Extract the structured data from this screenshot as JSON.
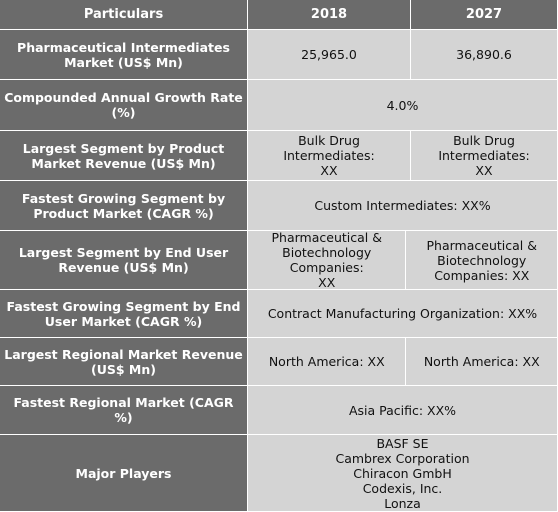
{
  "header": {
    "col1": "Particulars",
    "col2": "2018",
    "col3": "2027"
  },
  "rows": [
    {
      "label": "Pharmaceutical Intermediates\nMarket (US$ Mn)",
      "v2018": "25,965.0",
      "v2027": "36,890.6"
    },
    {
      "label": "Compounded Annual Growth Rate\n(%)",
      "value": "4.0%"
    },
    {
      "label": "Largest Segment by Product\nMarket Revenue (US$ Mn)",
      "v2018": "Bulk Drug\nIntermediates:\nXX",
      "v2027": "Bulk Drug\nIntermediates:\nXX"
    },
    {
      "label": "Fastest Growing Segment by\nProduct Market (CAGR %)",
      "value": "Custom Intermediates:  XX%"
    },
    {
      "label": "Largest Segment by End User\nRevenue (US$ Mn)",
      "v2018": "Pharmaceutical &\nBiotechnology\nCompanies:\nXX",
      "v2027": "Pharmaceutical &\nBiotechnology\nCompanies:  XX"
    },
    {
      "label": "Fastest Growing Segment by End\nUser Market (CAGR %)",
      "value": "Contract Manufacturing Organization:  XX%"
    },
    {
      "label": "Largest Regional Market Revenue\n(US$ Mn)",
      "v2018": "North America: XX",
      "v2027": "North America: XX"
    },
    {
      "label": "Fastest Regional Market (CAGR %)",
      "value": "Asia Pacific: XX%"
    },
    {
      "label": "Major Players",
      "value": "BASF SE\nCambrex Corporation\nChiracon GmbH\nCodexis, Inc.\nLonza"
    }
  ],
  "colors": {
    "header_bg": "#6b6b6b",
    "value_bg": "#d4d4d4",
    "border": "#ffffff"
  }
}
